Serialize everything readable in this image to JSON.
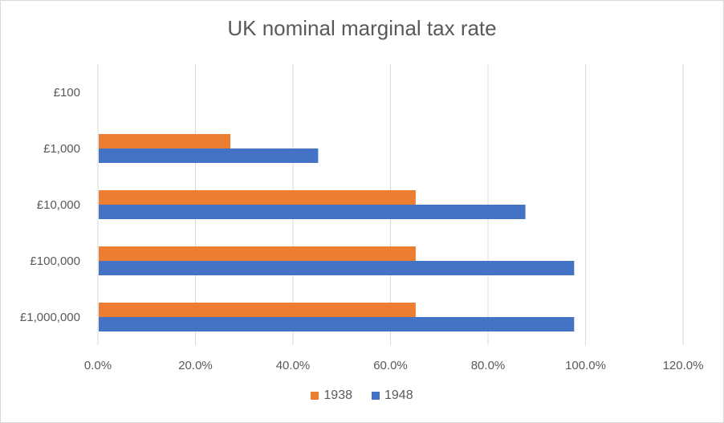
{
  "chart_data": {
    "type": "bar",
    "orientation": "horizontal",
    "title": "UK nominal marginal tax rate",
    "categories": [
      "£100",
      "£1,000",
      "£10,000",
      "£100,000",
      "£1,000,000"
    ],
    "series": [
      {
        "name": "1938",
        "color": "#ED7D31",
        "values": [
          0,
          27.0,
          65.0,
          65.0,
          65.0
        ]
      },
      {
        "name": "1948",
        "color": "#4472C4",
        "values": [
          0,
          45.0,
          87.5,
          97.5,
          97.5
        ]
      }
    ],
    "xlim": [
      0,
      120
    ],
    "xticks": [
      "0.0%",
      "20.0%",
      "40.0%",
      "60.0%",
      "80.0%",
      "100.0%",
      "120.0%"
    ],
    "legend_position": "bottom",
    "grid": true
  }
}
